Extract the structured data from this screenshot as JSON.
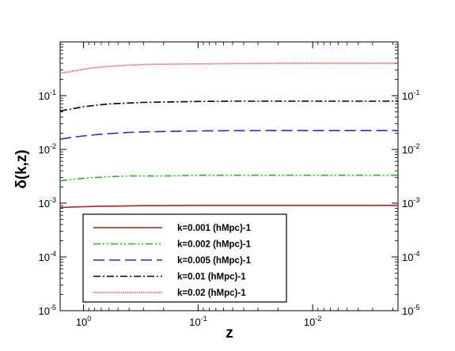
{
  "chart_data": {
    "type": "line",
    "title": "",
    "xlabel": "z",
    "ylabel": "δ(k,z)",
    "x_scale": "log",
    "x_reversed": true,
    "xlim": [
      1.6,
      0.0018
    ],
    "y_scale": "log",
    "ylim": [
      1e-05,
      1
    ],
    "grid": false,
    "legend_position": "lower-left",
    "x_ticks": [
      {
        "value": 1,
        "base": "10",
        "exp": "0"
      },
      {
        "value": 0.1,
        "base": "10",
        "exp": "-1"
      },
      {
        "value": 0.01,
        "base": "10",
        "exp": "-2"
      }
    ],
    "y_ticks": [
      {
        "value": 1e-05,
        "base": "10",
        "exp": "-5"
      },
      {
        "value": 0.0001,
        "base": "10",
        "exp": "-4"
      },
      {
        "value": 0.001,
        "base": "10",
        "exp": "-3"
      },
      {
        "value": 0.01,
        "base": "10",
        "exp": "-2"
      },
      {
        "value": 0.1,
        "base": "10",
        "exp": "-1"
      }
    ],
    "x": [
      1.6,
      1.2,
      1.0,
      0.8,
      0.6,
      0.4,
      0.3,
      0.2,
      0.1,
      0.05,
      0.02,
      0.01,
      0.005,
      0.002,
      0.0018
    ],
    "series": [
      {
        "name": "k=0.001  (hMpc)-1",
        "color": "#b22222",
        "dash": "solid",
        "values": [
          0.00083,
          0.00085,
          0.00086,
          0.00087,
          0.00088,
          0.00089,
          0.0009,
          0.0009,
          0.00091,
          0.00091,
          0.00091,
          0.00091,
          0.00091,
          0.00091,
          0.00091
        ]
      },
      {
        "name": "k=0.002  (hMpc)-1",
        "color": "#22bb22",
        "dash": "dashdotdot",
        "values": [
          0.0026,
          0.0028,
          0.0029,
          0.003,
          0.0031,
          0.0032,
          0.0032,
          0.0032,
          0.0033,
          0.0033,
          0.0033,
          0.0033,
          0.0033,
          0.0033,
          0.0033
        ]
      },
      {
        "name": "k=0.005  (hMpc)-1",
        "color": "#2a2acc",
        "dash": "dash",
        "values": [
          0.0155,
          0.017,
          0.0178,
          0.0187,
          0.0197,
          0.0207,
          0.0212,
          0.0216,
          0.0221,
          0.0223,
          0.0224,
          0.0224,
          0.0224,
          0.0224,
          0.0224
        ]
      },
      {
        "name": "k=0.01   (hMpc)-1",
        "color": "#000000",
        "dash": "dashdot",
        "values": [
          0.052,
          0.058,
          0.062,
          0.066,
          0.07,
          0.073,
          0.075,
          0.076,
          0.078,
          0.079,
          0.079,
          0.079,
          0.079,
          0.079,
          0.079
        ]
      },
      {
        "name": "k=0.02   (hMpc)-1",
        "color": "#ee5555",
        "dash": "dotted",
        "values": [
          0.26,
          0.29,
          0.31,
          0.33,
          0.35,
          0.37,
          0.38,
          0.385,
          0.39,
          0.395,
          0.4,
          0.4,
          0.4,
          0.4,
          0.4
        ]
      }
    ]
  }
}
